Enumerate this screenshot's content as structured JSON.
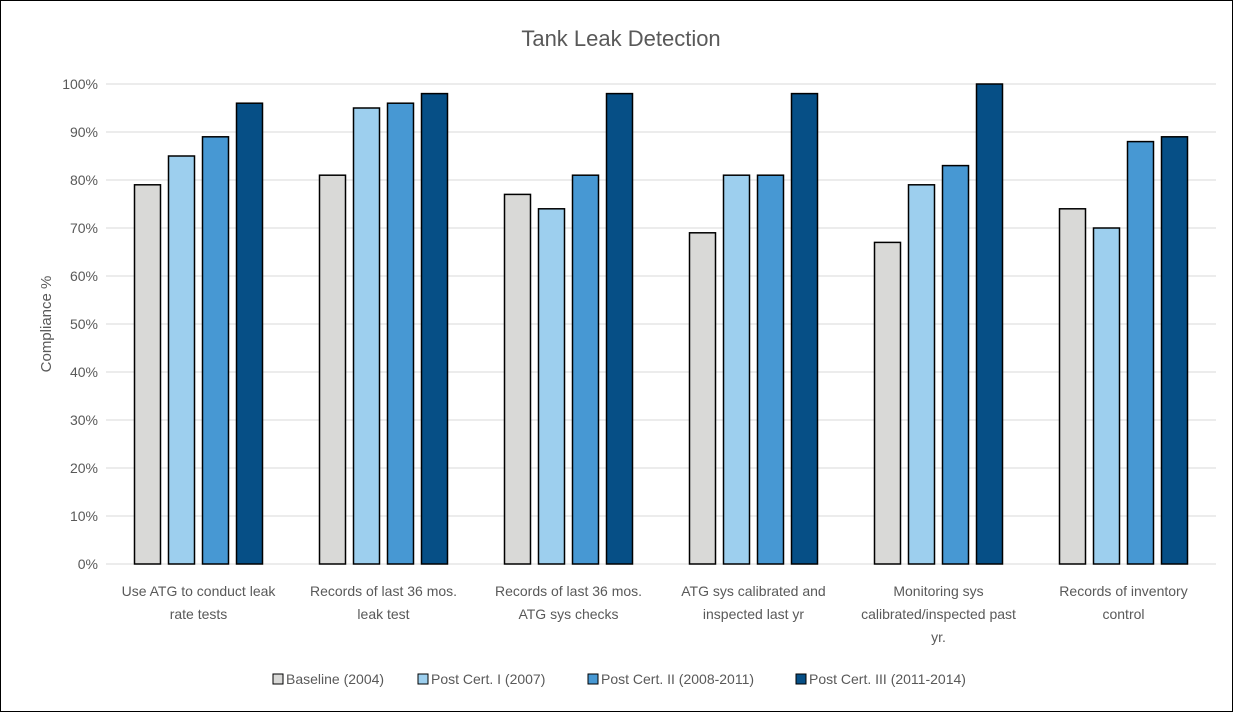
{
  "chart_data": {
    "type": "bar",
    "title": "Tank Leak Detection",
    "xlabel": "",
    "ylabel": "Compliance %",
    "ylim": [
      0,
      100
    ],
    "ytick_values": [
      0,
      10,
      20,
      30,
      40,
      50,
      60,
      70,
      80,
      90,
      100
    ],
    "ytick_labels": [
      "0%",
      "10%",
      "20%",
      "30%",
      "40%",
      "50%",
      "60%",
      "70%",
      "80%",
      "90%",
      "100%"
    ],
    "grid": true,
    "legend_position": "bottom",
    "categories": [
      [
        "Use ATG to conduct leak",
        "rate tests"
      ],
      [
        "Records of last 36 mos.",
        "leak test"
      ],
      [
        "Records of last 36 mos.",
        "ATG sys checks"
      ],
      [
        "ATG sys calibrated and",
        "inspected last yr"
      ],
      [
        "Monitoring sys",
        "calibrated/inspected past",
        "yr."
      ],
      [
        "Records of inventory",
        "control"
      ]
    ],
    "series": [
      {
        "name": "Baseline (2004)",
        "color": "#d9d9d7",
        "values": [
          79,
          81,
          77,
          69,
          67,
          74
        ]
      },
      {
        "name": "Post Cert. I (2007)",
        "color": "#9dcfee",
        "values": [
          85,
          95,
          74,
          81,
          79,
          70
        ]
      },
      {
        "name": "Post Cert. II (2008-2011)",
        "color": "#4798d3",
        "values": [
          89,
          96,
          81,
          81,
          83,
          88
        ]
      },
      {
        "name": "Post Cert. III (2011-2014)",
        "color": "#064f86",
        "values": [
          96,
          98,
          98,
          98,
          100,
          89
        ]
      }
    ]
  }
}
